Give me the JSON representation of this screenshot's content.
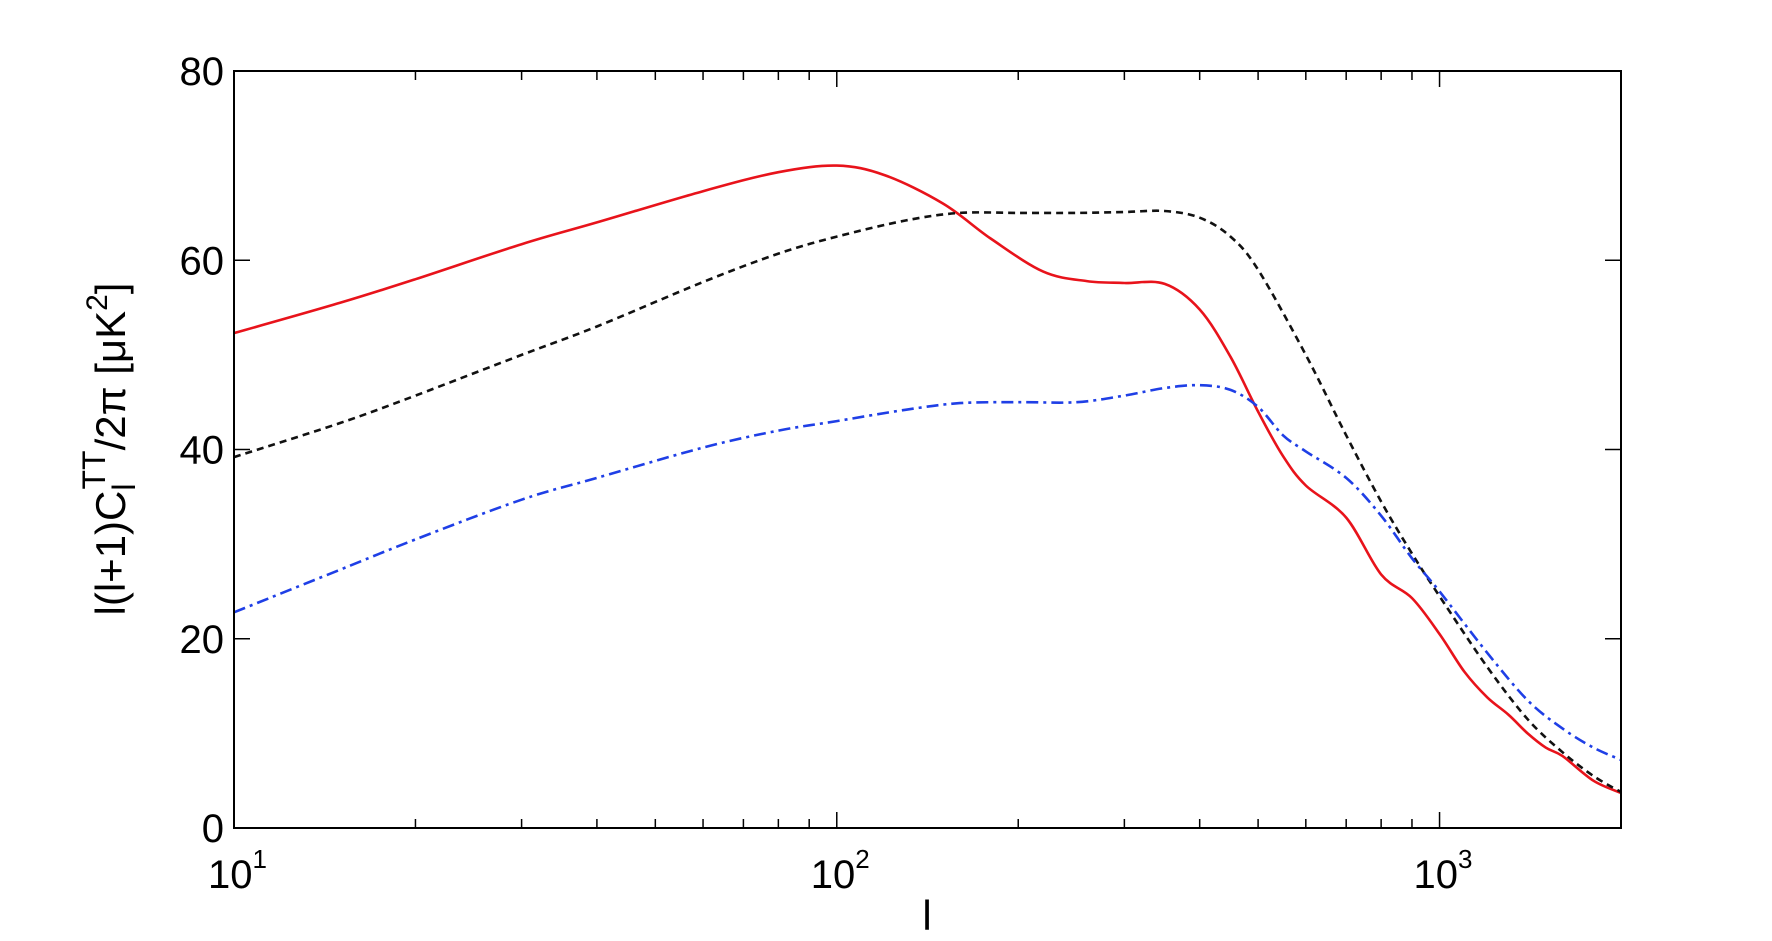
{
  "chart_data": {
    "type": "line",
    "title": "",
    "xlabel": "l",
    "ylabel": {
      "prefix": "l(l+1)C",
      "subscript": "l",
      "superscript": "TT",
      "suffix": "/2π [μK",
      "unit_exp": "2",
      "close": "]"
    },
    "xscale": "log",
    "xlim": [
      10,
      2000
    ],
    "ylim": [
      0,
      80
    ],
    "grid": false,
    "legend": "none",
    "x_ticks": [
      {
        "base": "10",
        "exp": "1",
        "value": 10
      },
      {
        "base": "10",
        "exp": "2",
        "value": 100
      },
      {
        "base": "10",
        "exp": "3",
        "value": 1000
      }
    ],
    "y_ticks": [
      0,
      20,
      40,
      60,
      80
    ],
    "series": [
      {
        "style": "solid",
        "color": "#e8131b",
        "x": [
          10,
          15,
          20,
          30,
          40,
          60,
          80,
          100,
          120,
          150,
          180,
          220,
          260,
          300,
          350,
          400,
          450,
          500,
          550,
          600,
          700,
          800,
          900,
          1000,
          1100,
          1200,
          1300,
          1400,
          1500,
          1600,
          1800,
          2000
        ],
        "y": [
          52.3,
          55.5,
          58.0,
          61.7,
          64.0,
          67.3,
          69.3,
          70.0,
          69.0,
          66.0,
          62.3,
          58.8,
          57.8,
          57.6,
          57.5,
          54.8,
          49.8,
          44.0,
          39.3,
          36.2,
          32.8,
          26.8,
          24.3,
          20.5,
          16.5,
          13.8,
          12.0,
          10.0,
          8.5,
          7.6,
          5.0,
          3.7
        ]
      },
      {
        "style": "dashed",
        "color": "#111111",
        "x": [
          10,
          15,
          20,
          30,
          40,
          60,
          80,
          100,
          130,
          160,
          200,
          250,
          300,
          350,
          400,
          450,
          500,
          600,
          700,
          800,
          900,
          1000,
          1200,
          1400,
          1600,
          1800,
          2000
        ],
        "y": [
          39.2,
          42.8,
          45.7,
          50.0,
          53.0,
          57.7,
          60.7,
          62.5,
          64.2,
          65.0,
          65.0,
          65.0,
          65.1,
          65.2,
          64.5,
          62.5,
          59.0,
          50.0,
          41.5,
          34.5,
          29.0,
          24.5,
          17.0,
          11.5,
          8.0,
          5.5,
          3.8
        ]
      },
      {
        "style": "dashdot",
        "color": "#1f3fe6",
        "x": [
          10,
          15,
          20,
          30,
          40,
          60,
          80,
          100,
          130,
          160,
          200,
          250,
          300,
          350,
          400,
          450,
          500,
          550,
          600,
          700,
          800,
          900,
          1000,
          1200,
          1400,
          1600,
          1800,
          2000
        ],
        "y": [
          22.8,
          27.3,
          30.5,
          34.7,
          37.0,
          40.2,
          42.0,
          43.0,
          44.2,
          44.9,
          45.0,
          45.0,
          45.7,
          46.5,
          46.8,
          46.3,
          44.5,
          41.5,
          39.8,
          37.0,
          33.0,
          28.5,
          25.0,
          18.5,
          13.5,
          10.5,
          8.5,
          7.2
        ]
      }
    ]
  }
}
